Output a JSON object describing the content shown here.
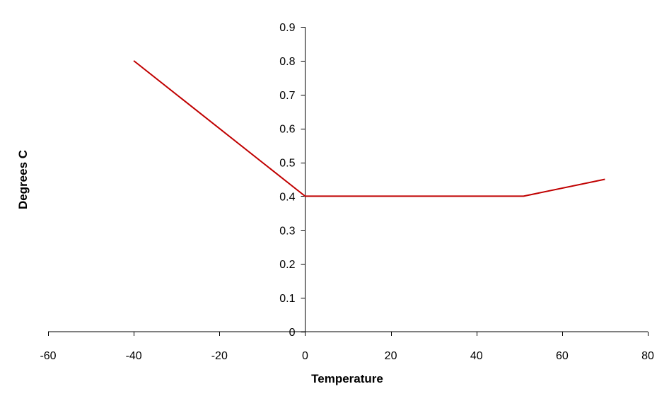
{
  "chart_data": {
    "type": "line",
    "title": "",
    "xlabel": "Temperature",
    "ylabel": "Degrees C",
    "xlim": [
      -60,
      80
    ],
    "ylim": [
      0,
      0.9
    ],
    "x_ticks": [
      "-60",
      "-40",
      "-20",
      "0",
      "20",
      "40",
      "60",
      "80"
    ],
    "y_ticks": [
      "0",
      "0.1",
      "0.2",
      "0.3",
      "0.4",
      "0.5",
      "0.6",
      "0.7",
      "0.8",
      "0.9"
    ],
    "grid": false,
    "legend": "none",
    "series": [
      {
        "color": "#c00000",
        "points": [
          {
            "x": -40,
            "y": 0.8
          },
          {
            "x": 0,
            "y": 0.4
          },
          {
            "x": 51,
            "y": 0.4
          },
          {
            "x": 70,
            "y": 0.45
          }
        ]
      }
    ]
  }
}
